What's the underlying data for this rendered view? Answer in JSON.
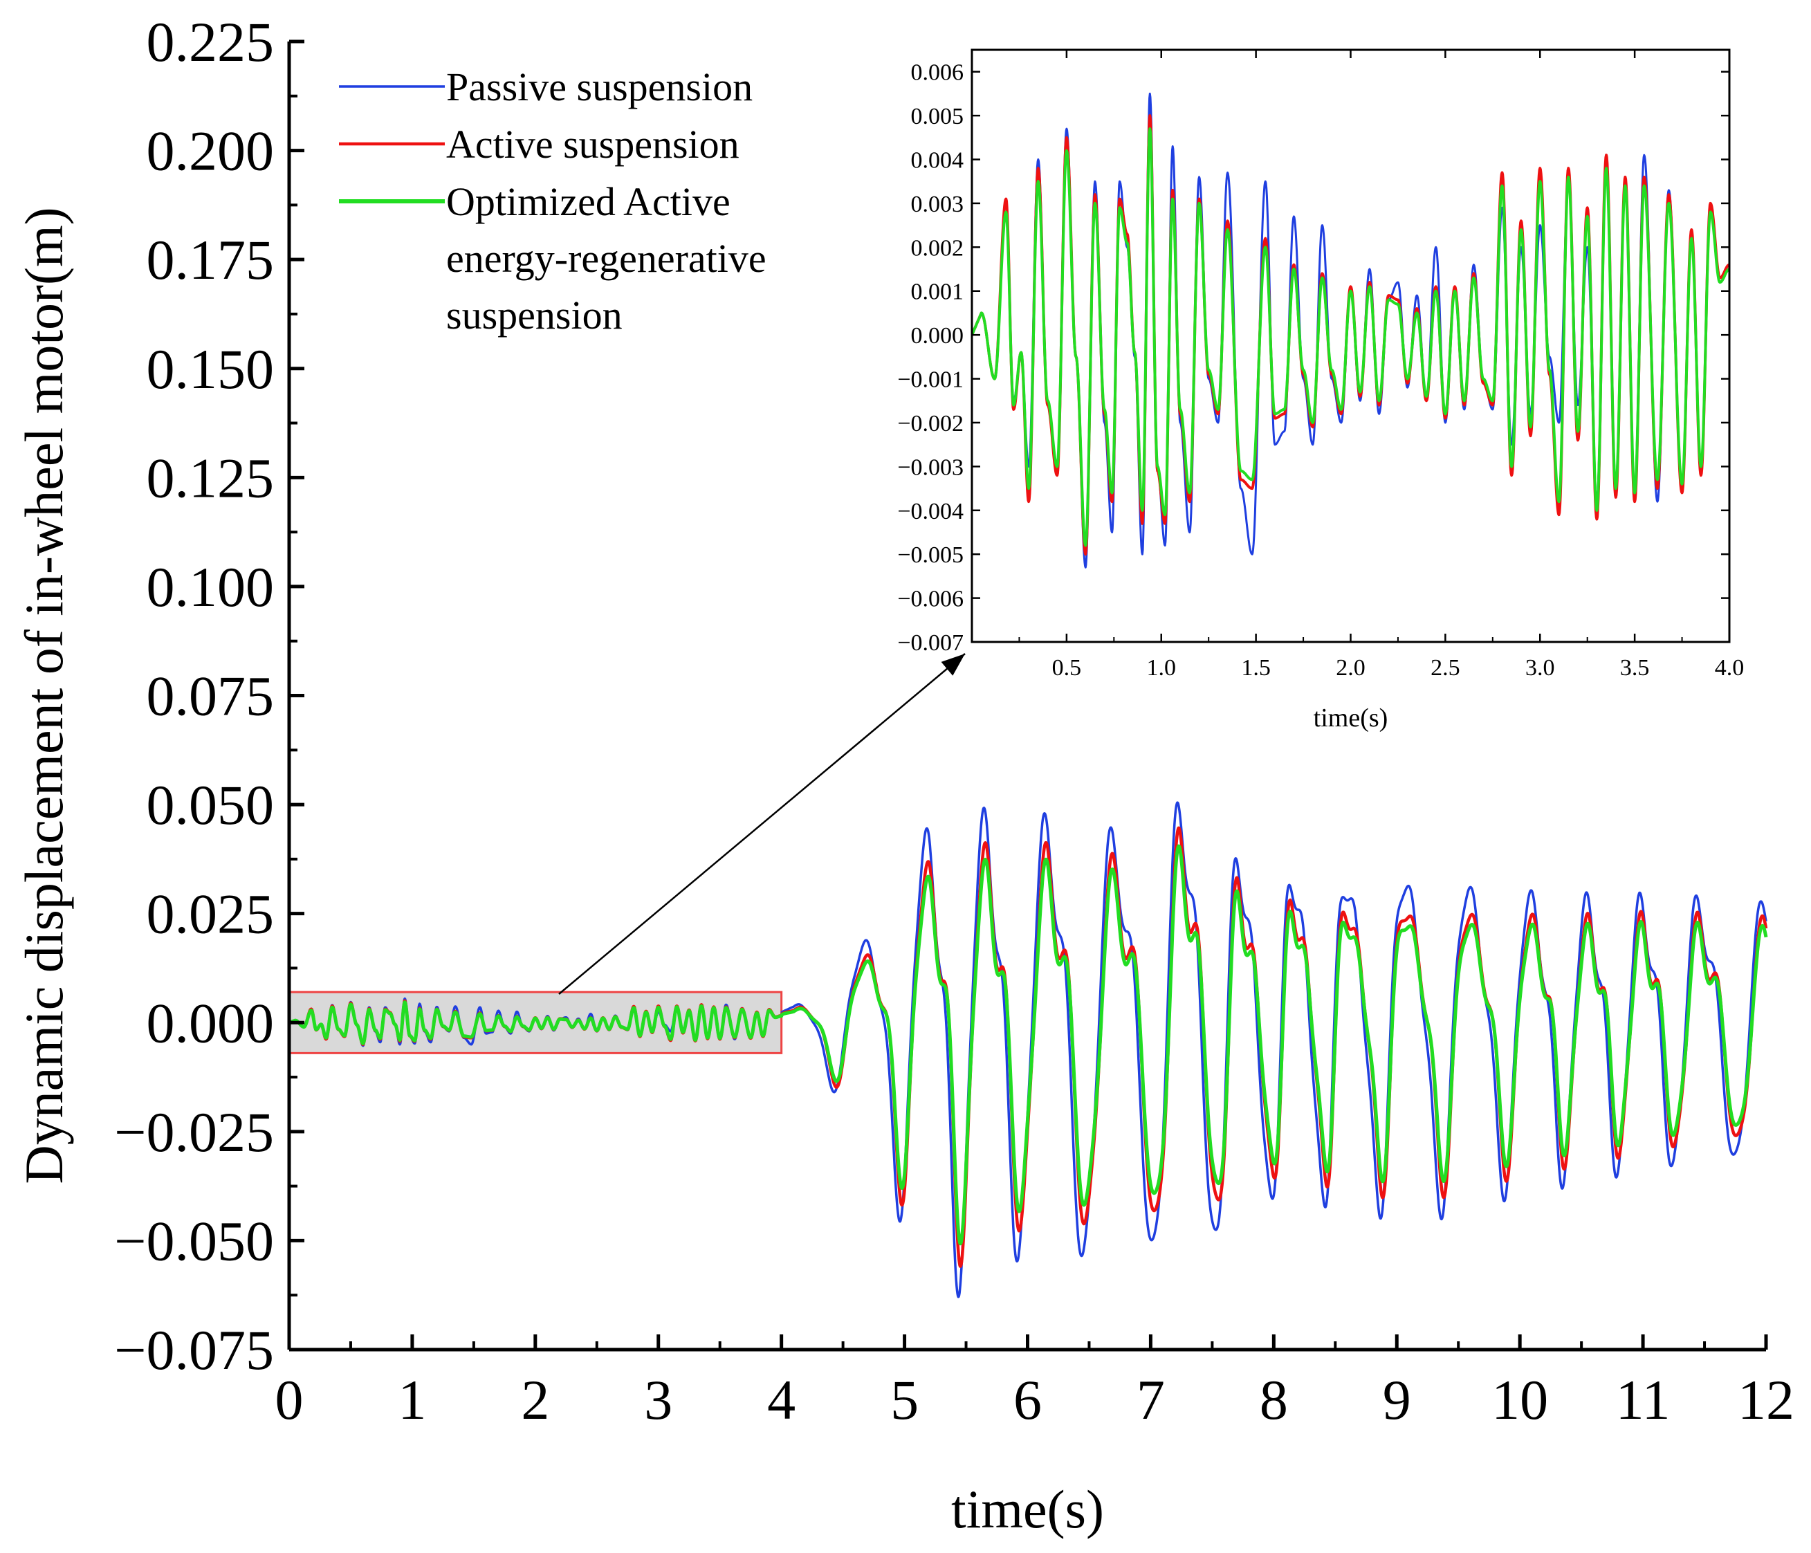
{
  "chart_data": [
    {
      "id": "main",
      "type": "line",
      "xlabel": "time(s)",
      "ylabel": "Dynamic displacement of in-wheel motor(m)",
      "xlim": [
        0,
        12
      ],
      "ylim": [
        -0.075,
        0.225
      ],
      "xticks": [
        0,
        1,
        2,
        3,
        4,
        5,
        6,
        7,
        8,
        9,
        10,
        11,
        12
      ],
      "xtick_labels": [
        "0",
        "1",
        "2",
        "3",
        "4",
        "5",
        "6",
        "7",
        "8",
        "9",
        "10",
        "11",
        "12"
      ],
      "yticks": [
        -0.075,
        -0.05,
        -0.025,
        0,
        0.025,
        0.05,
        0.075,
        0.1,
        0.125,
        0.15,
        0.175,
        0.2,
        0.225
      ],
      "ytick_labels": [
        "−0.075",
        "−0.050",
        "−0.025",
        "0.000",
        "0.025",
        "0.050",
        "0.075",
        "0.100",
        "0.125",
        "0.150",
        "0.175",
        "0.200",
        "0.225"
      ],
      "grid": false,
      "legend_position": "top-left",
      "series": [
        {
          "name": "Passive suspension",
          "color": "#1f3fe0"
        },
        {
          "name": "Active suspension",
          "color": "#ee1111"
        },
        {
          "name": "Optimized Active energy-regenerative suspension",
          "color": "#22dd22",
          "legend_lines": [
            "Optimized Active",
            " energy-regenerative",
            " suspension"
          ]
        }
      ],
      "waveform": {
        "t": [
          0,
          4,
          4.1,
          4.6,
          4.8,
          5.0,
          5.2,
          5.5,
          6.0,
          6.25,
          6.8,
          7.3,
          7.8,
          8.4,
          9.2,
          9.8,
          10.5,
          11.2,
          12.0
        ],
        "passive_amplitude": [
          0.004,
          0.004,
          0.005,
          0.02,
          0.03,
          0.045,
          0.055,
          0.06,
          0.052,
          0.058,
          0.05,
          0.062,
          0.043,
          0.042,
          0.043,
          0.038,
          0.035,
          0.034,
          0.033
        ],
        "active_ratio": 0.86,
        "optimized_ratio": 0.78
      },
      "zoom_region": {
        "x": [
          0,
          4
        ],
        "y": [
          -0.007,
          0.007
        ],
        "fill": "#d9d9d9",
        "stroke": "#ee4444"
      }
    },
    {
      "id": "inset",
      "type": "line",
      "xlabel": "time(s)",
      "xlim": [
        0,
        4
      ],
      "ylim": [
        -0.007,
        0.0065
      ],
      "xticks": [
        0.5,
        1.0,
        1.5,
        2.0,
        2.5,
        3.0,
        3.5,
        4.0
      ],
      "xtick_labels": [
        "0.5",
        "1.0",
        "1.5",
        "2.0",
        "2.5",
        "3.0",
        "3.5",
        "4.0"
      ],
      "yticks": [
        0.006,
        0.005,
        0.004,
        0.003,
        0.002,
        0.001,
        0,
        -0.001,
        -0.002,
        -0.003,
        -0.004,
        -0.005,
        -0.006,
        -0.007
      ],
      "ytick_labels": [
        "0.006",
        "0.005",
        "0.004",
        "0.003",
        "0.002",
        "0.001",
        "0.000",
        "−0.001",
        "−0.002",
        "−0.003",
        "−0.004",
        "−0.005",
        "−0.006",
        "−0.007"
      ],
      "grid": false,
      "peaks": {
        "t": [
          0.05,
          0.12,
          0.18,
          0.22,
          0.26,
          0.3,
          0.35,
          0.4,
          0.45,
          0.5,
          0.55,
          0.6,
          0.65,
          0.7,
          0.74,
          0.78,
          0.82,
          0.86,
          0.9,
          0.94,
          0.98,
          1.02,
          1.06,
          1.1,
          1.15,
          1.2,
          1.25,
          1.3,
          1.35,
          1.42,
          1.48,
          1.55,
          1.6,
          1.65,
          1.7,
          1.75,
          1.8,
          1.85,
          1.9,
          1.95,
          2.0,
          2.05,
          2.1,
          2.15,
          2.2,
          2.25,
          2.3,
          2.35,
          2.4,
          2.45,
          2.5,
          2.55,
          2.6,
          2.65,
          2.7,
          2.75,
          2.8,
          2.85,
          2.9,
          2.95,
          3.0,
          3.05,
          3.1,
          3.15,
          3.2,
          3.25,
          3.3,
          3.35,
          3.4,
          3.45,
          3.5,
          3.55,
          3.62,
          3.68,
          3.75,
          3.8,
          3.85,
          3.9,
          3.95,
          4.0
        ],
        "passive": [
          0.0005,
          -0.001,
          0.003,
          -0.0015,
          -0.0005,
          -0.003,
          0.004,
          -0.0015,
          -0.003,
          0.0047,
          -0.0005,
          -0.0053,
          0.0035,
          -0.002,
          -0.0045,
          0.0035,
          0.002,
          -0.0005,
          -0.005,
          0.0055,
          -0.003,
          -0.0048,
          0.0043,
          -0.002,
          -0.0045,
          0.0036,
          -0.001,
          -0.002,
          0.0037,
          -0.0035,
          -0.005,
          0.0035,
          -0.0025,
          -0.0022,
          0.0027,
          -0.001,
          -0.0025,
          0.0025,
          -0.001,
          -0.002,
          0.001,
          -0.0015,
          0.0015,
          -0.0018,
          0.0008,
          0.0012,
          -0.0012,
          0.0009,
          -0.0015,
          0.002,
          -0.002,
          0.001,
          -0.0017,
          0.0016,
          -0.001,
          -0.0017,
          0.0029,
          -0.0025,
          0.002,
          -0.0018,
          0.0025,
          -0.0005,
          -0.002,
          0.0035,
          -0.0016,
          0.002,
          -0.0038,
          0.0038,
          -0.0034,
          0.0035,
          -0.0035,
          0.0041,
          -0.0038,
          0.0033,
          -0.0034,
          0.0023,
          -0.003,
          0.0028,
          0.0012,
          0.0015
        ],
        "active": [
          0.0005,
          -0.001,
          0.0031,
          -0.0017,
          -0.0004,
          -0.0038,
          0.0038,
          -0.0016,
          -0.0032,
          0.0045,
          -0.0005,
          -0.005,
          0.0032,
          -0.0018,
          -0.0038,
          0.0031,
          0.0023,
          -0.0004,
          -0.0043,
          0.005,
          -0.0031,
          -0.0043,
          0.0033,
          -0.0018,
          -0.0038,
          0.0031,
          -0.0009,
          -0.0018,
          0.0026,
          -0.0033,
          -0.0035,
          0.0022,
          -0.0019,
          -0.0018,
          0.0016,
          -0.0009,
          -0.0021,
          0.0014,
          -0.0009,
          -0.0018,
          0.0011,
          -0.0014,
          0.0012,
          -0.0016,
          0.0009,
          0.0008,
          -0.0011,
          0.0006,
          -0.0015,
          0.0011,
          -0.0019,
          0.0011,
          -0.0016,
          0.0014,
          -0.0011,
          -0.0016,
          0.0037,
          -0.0032,
          0.0026,
          -0.0023,
          0.0038,
          -0.0009,
          -0.0041,
          0.0038,
          -0.0024,
          0.0029,
          -0.0042,
          0.0041,
          -0.0037,
          0.0036,
          -0.0038,
          0.0036,
          -0.0035,
          0.0032,
          -0.0036,
          0.0024,
          -0.0032,
          0.003,
          0.0013,
          0.0016
        ],
        "optimized": [
          0.0005,
          -0.001,
          0.0028,
          -0.0016,
          -0.0004,
          -0.0035,
          0.0035,
          -0.0015,
          -0.003,
          0.0042,
          -0.0005,
          -0.0048,
          0.003,
          -0.0017,
          -0.0036,
          0.0029,
          0.0021,
          -0.0004,
          -0.004,
          0.0047,
          -0.003,
          -0.0041,
          0.0031,
          -0.0017,
          -0.0036,
          0.003,
          -0.0008,
          -0.0017,
          0.0024,
          -0.0031,
          -0.0033,
          0.002,
          -0.0018,
          -0.0017,
          0.0015,
          -0.0008,
          -0.002,
          0.0013,
          -0.0008,
          -0.0017,
          0.001,
          -0.0013,
          0.0011,
          -0.0015,
          0.0008,
          0.0007,
          -0.001,
          0.0005,
          -0.0014,
          0.001,
          -0.0018,
          0.001,
          -0.0015,
          0.0013,
          -0.001,
          -0.0015,
          0.0034,
          -0.003,
          0.0024,
          -0.0021,
          0.0035,
          -0.0008,
          -0.0038,
          0.0036,
          -0.0022,
          0.0027,
          -0.004,
          0.0038,
          -0.0035,
          0.0034,
          -0.0036,
          0.0034,
          -0.0033,
          0.003,
          -0.0034,
          0.0022,
          -0.003,
          0.0028,
          0.0012,
          0.0015
        ]
      }
    }
  ]
}
